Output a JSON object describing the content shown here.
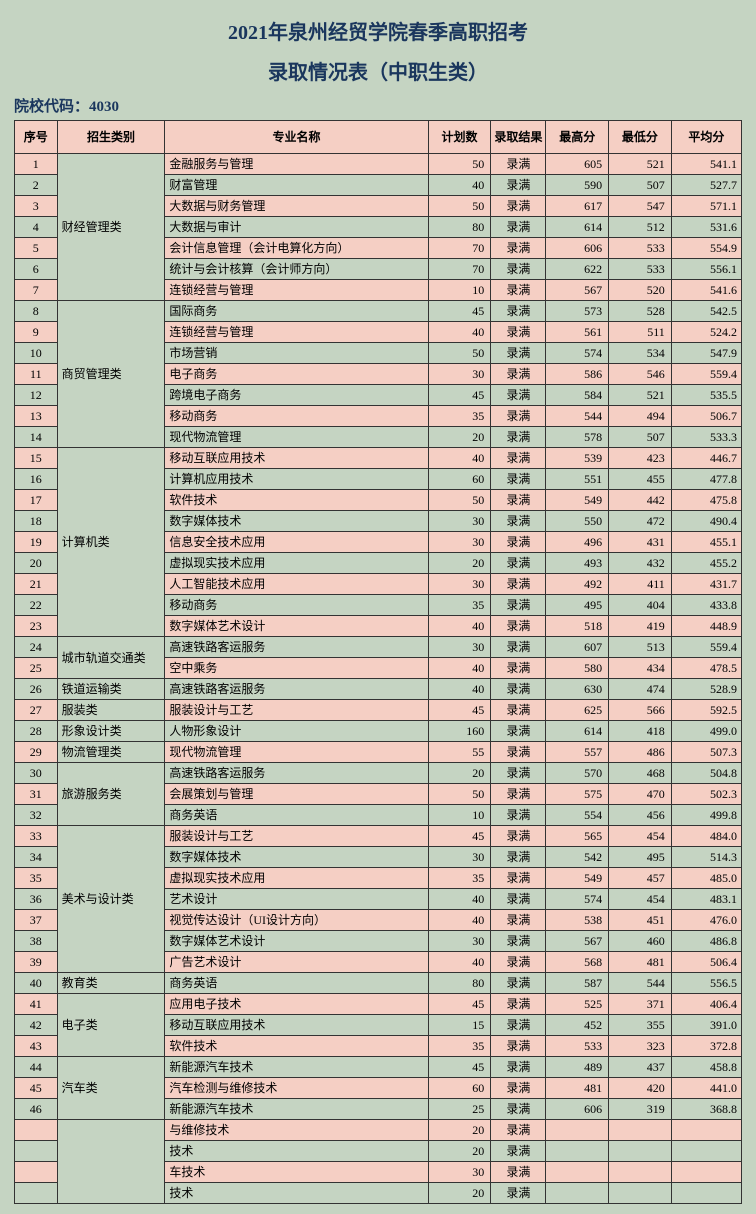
{
  "title_line1": "2021年泉州经贸学院春季高职招考",
  "title_line2": "录取情况表（中职生类）",
  "school_code_label": "院校代码：4030",
  "headers": {
    "idx": "序号",
    "category": "招生类别",
    "major": "专业名称",
    "plan": "计划数",
    "result": "录取结果",
    "max": "最高分",
    "min": "最低分",
    "avg": "平均分"
  },
  "colors": {
    "page_bg": "#c5d4c2",
    "header_bg": "#f5cfc4",
    "row_alt_bg": "#f5cfc4",
    "border": "#333333",
    "title_color": "#1a365d"
  },
  "rows": [
    {
      "idx": 1,
      "cat": "财经管理类",
      "catspan": 7,
      "major": "金融服务与管理",
      "plan": 50,
      "res": "录满",
      "max": 605,
      "min": 521,
      "avg": "541.1"
    },
    {
      "idx": 2,
      "major": "财富管理",
      "plan": 40,
      "res": "录满",
      "max": 590,
      "min": 507,
      "avg": "527.7"
    },
    {
      "idx": 3,
      "major": "大数据与财务管理",
      "plan": 50,
      "res": "录满",
      "max": 617,
      "min": 547,
      "avg": "571.1"
    },
    {
      "idx": 4,
      "major": "大数据与审计",
      "plan": 80,
      "res": "录满",
      "max": 614,
      "min": 512,
      "avg": "531.6"
    },
    {
      "idx": 5,
      "major": "会计信息管理（会计电算化方向）",
      "plan": 70,
      "res": "录满",
      "max": 606,
      "min": 533,
      "avg": "554.9"
    },
    {
      "idx": 6,
      "major": "统计与会计核算（会计师方向）",
      "plan": 70,
      "res": "录满",
      "max": 622,
      "min": 533,
      "avg": "556.1"
    },
    {
      "idx": 7,
      "major": "连锁经营与管理",
      "plan": 10,
      "res": "录满",
      "max": 567,
      "min": 520,
      "avg": "541.6"
    },
    {
      "idx": 8,
      "cat": "商贸管理类",
      "catspan": 7,
      "major": "国际商务",
      "plan": 45,
      "res": "录满",
      "max": 573,
      "min": 528,
      "avg": "542.5"
    },
    {
      "idx": 9,
      "major": "连锁经营与管理",
      "plan": 40,
      "res": "录满",
      "max": 561,
      "min": 511,
      "avg": "524.2"
    },
    {
      "idx": 10,
      "major": "市场营销",
      "plan": 50,
      "res": "录满",
      "max": 574,
      "min": 534,
      "avg": "547.9"
    },
    {
      "idx": 11,
      "major": "电子商务",
      "plan": 30,
      "res": "录满",
      "max": 586,
      "min": 546,
      "avg": "559.4"
    },
    {
      "idx": 12,
      "major": "跨境电子商务",
      "plan": 45,
      "res": "录满",
      "max": 584,
      "min": 521,
      "avg": "535.5"
    },
    {
      "idx": 13,
      "major": "移动商务",
      "plan": 35,
      "res": "录满",
      "max": 544,
      "min": 494,
      "avg": "506.7"
    },
    {
      "idx": 14,
      "major": "现代物流管理",
      "plan": 20,
      "res": "录满",
      "max": 578,
      "min": 507,
      "avg": "533.3"
    },
    {
      "idx": 15,
      "cat": "计算机类",
      "catspan": 9,
      "major": "移动互联应用技术",
      "plan": 40,
      "res": "录满",
      "max": 539,
      "min": 423,
      "avg": "446.7"
    },
    {
      "idx": 16,
      "major": "计算机应用技术",
      "plan": 60,
      "res": "录满",
      "max": 551,
      "min": 455,
      "avg": "477.8"
    },
    {
      "idx": 17,
      "major": "软件技术",
      "plan": 50,
      "res": "录满",
      "max": 549,
      "min": 442,
      "avg": "475.8"
    },
    {
      "idx": 18,
      "major": "数字媒体技术",
      "plan": 30,
      "res": "录满",
      "max": 550,
      "min": 472,
      "avg": "490.4"
    },
    {
      "idx": 19,
      "major": "信息安全技术应用",
      "plan": 30,
      "res": "录满",
      "max": 496,
      "min": 431,
      "avg": "455.1"
    },
    {
      "idx": 20,
      "major": "虚拟现实技术应用",
      "plan": 20,
      "res": "录满",
      "max": 493,
      "min": 432,
      "avg": "455.2"
    },
    {
      "idx": 21,
      "major": "人工智能技术应用",
      "plan": 30,
      "res": "录满",
      "max": 492,
      "min": 411,
      "avg": "431.7"
    },
    {
      "idx": 22,
      "major": "移动商务",
      "plan": 35,
      "res": "录满",
      "max": 495,
      "min": 404,
      "avg": "433.8"
    },
    {
      "idx": 23,
      "major": "数字媒体艺术设计",
      "plan": 40,
      "res": "录满",
      "max": 518,
      "min": 419,
      "avg": "448.9"
    },
    {
      "idx": 24,
      "cat": "城市轨道交通类",
      "catspan": 2,
      "major": "高速铁路客运服务",
      "plan": 30,
      "res": "录满",
      "max": 607,
      "min": 513,
      "avg": "559.4"
    },
    {
      "idx": 25,
      "major": "空中乘务",
      "plan": 40,
      "res": "录满",
      "max": 580,
      "min": 434,
      "avg": "478.5"
    },
    {
      "idx": 26,
      "cat": "铁道运输类",
      "catspan": 1,
      "major": "高速铁路客运服务",
      "plan": 40,
      "res": "录满",
      "max": 630,
      "min": 474,
      "avg": "528.9"
    },
    {
      "idx": 27,
      "cat": "服装类",
      "catspan": 1,
      "major": "服装设计与工艺",
      "plan": 45,
      "res": "录满",
      "max": 625,
      "min": 566,
      "avg": "592.5"
    },
    {
      "idx": 28,
      "cat": "形象设计类",
      "catspan": 1,
      "major": "人物形象设计",
      "plan": 160,
      "res": "录满",
      "max": 614,
      "min": 418,
      "avg": "499.0"
    },
    {
      "idx": 29,
      "cat": "物流管理类",
      "catspan": 1,
      "major": "现代物流管理",
      "plan": 55,
      "res": "录满",
      "max": 557,
      "min": 486,
      "avg": "507.3"
    },
    {
      "idx": 30,
      "cat": "旅游服务类",
      "catspan": 3,
      "major": "高速铁路客运服务",
      "plan": 20,
      "res": "录满",
      "max": 570,
      "min": 468,
      "avg": "504.8"
    },
    {
      "idx": 31,
      "major": "会展策划与管理",
      "plan": 50,
      "res": "录满",
      "max": 575,
      "min": 470,
      "avg": "502.3"
    },
    {
      "idx": 32,
      "major": "商务英语",
      "plan": 10,
      "res": "录满",
      "max": 554,
      "min": 456,
      "avg": "499.8"
    },
    {
      "idx": 33,
      "cat": "美术与设计类",
      "catspan": 7,
      "major": "服装设计与工艺",
      "plan": 45,
      "res": "录满",
      "max": 565,
      "min": 454,
      "avg": "484.0"
    },
    {
      "idx": 34,
      "major": "数字媒体技术",
      "plan": 30,
      "res": "录满",
      "max": 542,
      "min": 495,
      "avg": "514.3"
    },
    {
      "idx": 35,
      "major": "虚拟现实技术应用",
      "plan": 35,
      "res": "录满",
      "max": 549,
      "min": 457,
      "avg": "485.0"
    },
    {
      "idx": 36,
      "major": "艺术设计",
      "plan": 40,
      "res": "录满",
      "max": 574,
      "min": 454,
      "avg": "483.1"
    },
    {
      "idx": 37,
      "major": "视觉传达设计（UI设计方向）",
      "plan": 40,
      "res": "录满",
      "max": 538,
      "min": 451,
      "avg": "476.0"
    },
    {
      "idx": 38,
      "major": "数字媒体艺术设计",
      "plan": 30,
      "res": "录满",
      "max": 567,
      "min": 460,
      "avg": "486.8"
    },
    {
      "idx": 39,
      "major": "广告艺术设计",
      "plan": 40,
      "res": "录满",
      "max": 568,
      "min": 481,
      "avg": "506.4"
    },
    {
      "idx": 40,
      "cat": "教育类",
      "catspan": 1,
      "major": "商务英语",
      "plan": 80,
      "res": "录满",
      "max": 587,
      "min": 544,
      "avg": "556.5"
    },
    {
      "idx": 41,
      "cat": "电子类",
      "catspan": 3,
      "major": "应用电子技术",
      "plan": 45,
      "res": "录满",
      "max": 525,
      "min": 371,
      "avg": "406.4"
    },
    {
      "idx": 42,
      "major": "移动互联应用技术",
      "plan": 15,
      "res": "录满",
      "max": 452,
      "min": 355,
      "avg": "391.0"
    },
    {
      "idx": 43,
      "major": "软件技术",
      "plan": 35,
      "res": "录满",
      "max": 533,
      "min": 323,
      "avg": "372.8"
    },
    {
      "idx": 44,
      "cat": "汽车类",
      "catspan": 3,
      "major": "新能源汽车技术",
      "plan": 45,
      "res": "录满",
      "max": 489,
      "min": 437,
      "avg": "458.8"
    },
    {
      "idx": 45,
      "major": "汽车检测与维修技术",
      "plan": 60,
      "res": "录满",
      "max": 481,
      "min": 420,
      "avg": "441.0"
    },
    {
      "idx": 46,
      "major": "新能源汽车技术",
      "plan": 25,
      "res": "录满",
      "max": 606,
      "min": 319,
      "avg": "368.8"
    },
    {
      "idx": "",
      "cat": "",
      "catspan": 4,
      "major": "与维修技术",
      "plan": 20,
      "res": "录满",
      "max": "",
      "min": "",
      "avg": ""
    },
    {
      "idx": "",
      "major": "技术",
      "plan": 20,
      "res": "录满",
      "max": "",
      "min": "",
      "avg": ""
    },
    {
      "idx": "",
      "major": "车技术",
      "plan": 30,
      "res": "录满",
      "max": "",
      "min": "",
      "avg": ""
    },
    {
      "idx": "",
      "major": "技术",
      "plan": 20,
      "res": "录满",
      "max": "",
      "min": "",
      "avg": ""
    }
  ]
}
